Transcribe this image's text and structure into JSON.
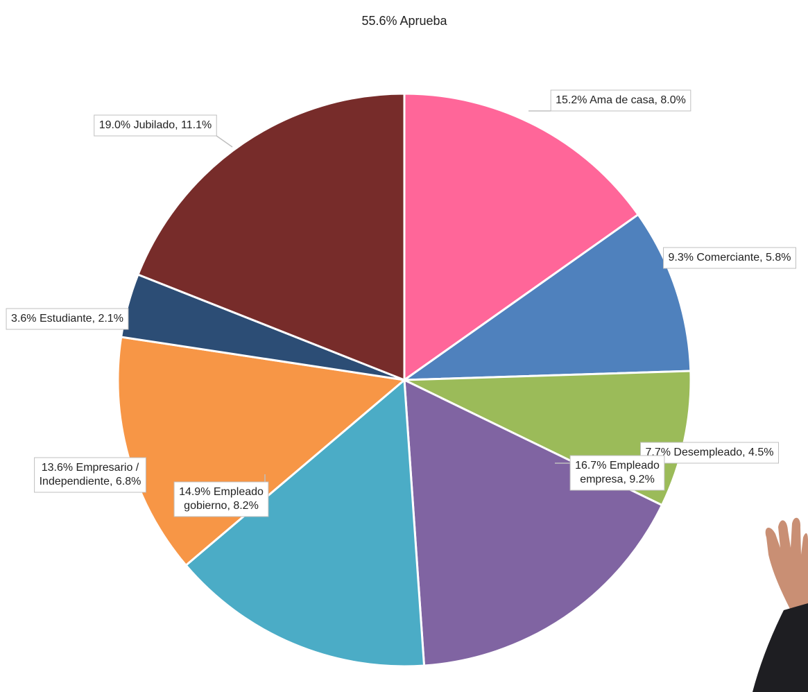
{
  "chart_data": {
    "type": "pie",
    "title": "55.6% Aprueba",
    "values": [
      15.2,
      9.3,
      7.7,
      16.7,
      14.9,
      13.6,
      3.6,
      19.0
    ],
    "value_labels": [
      [
        "15.2% Ama de casa, 8.0%"
      ],
      [
        "9.3% Comerciante, 5.8%"
      ],
      [
        "7.7% Desempleado, 4.5%"
      ],
      [
        "16.7% Empleado",
        "empresa, 9.2%"
      ],
      [
        "14.9% Empleado",
        "gobierno, 8.2%"
      ],
      [
        "13.6% Empresario /",
        "Independiente, 6.8%"
      ],
      [
        "3.6% Estudiante, 2.1%"
      ],
      [
        "19.0% Jubilado, 11.1%"
      ]
    ],
    "colors": [
      "#FF6699",
      "#4F81BD",
      "#9BBB59",
      "#8064A2",
      "#4BACC6",
      "#F79646",
      "#2C4D75",
      "#772C2A"
    ]
  }
}
